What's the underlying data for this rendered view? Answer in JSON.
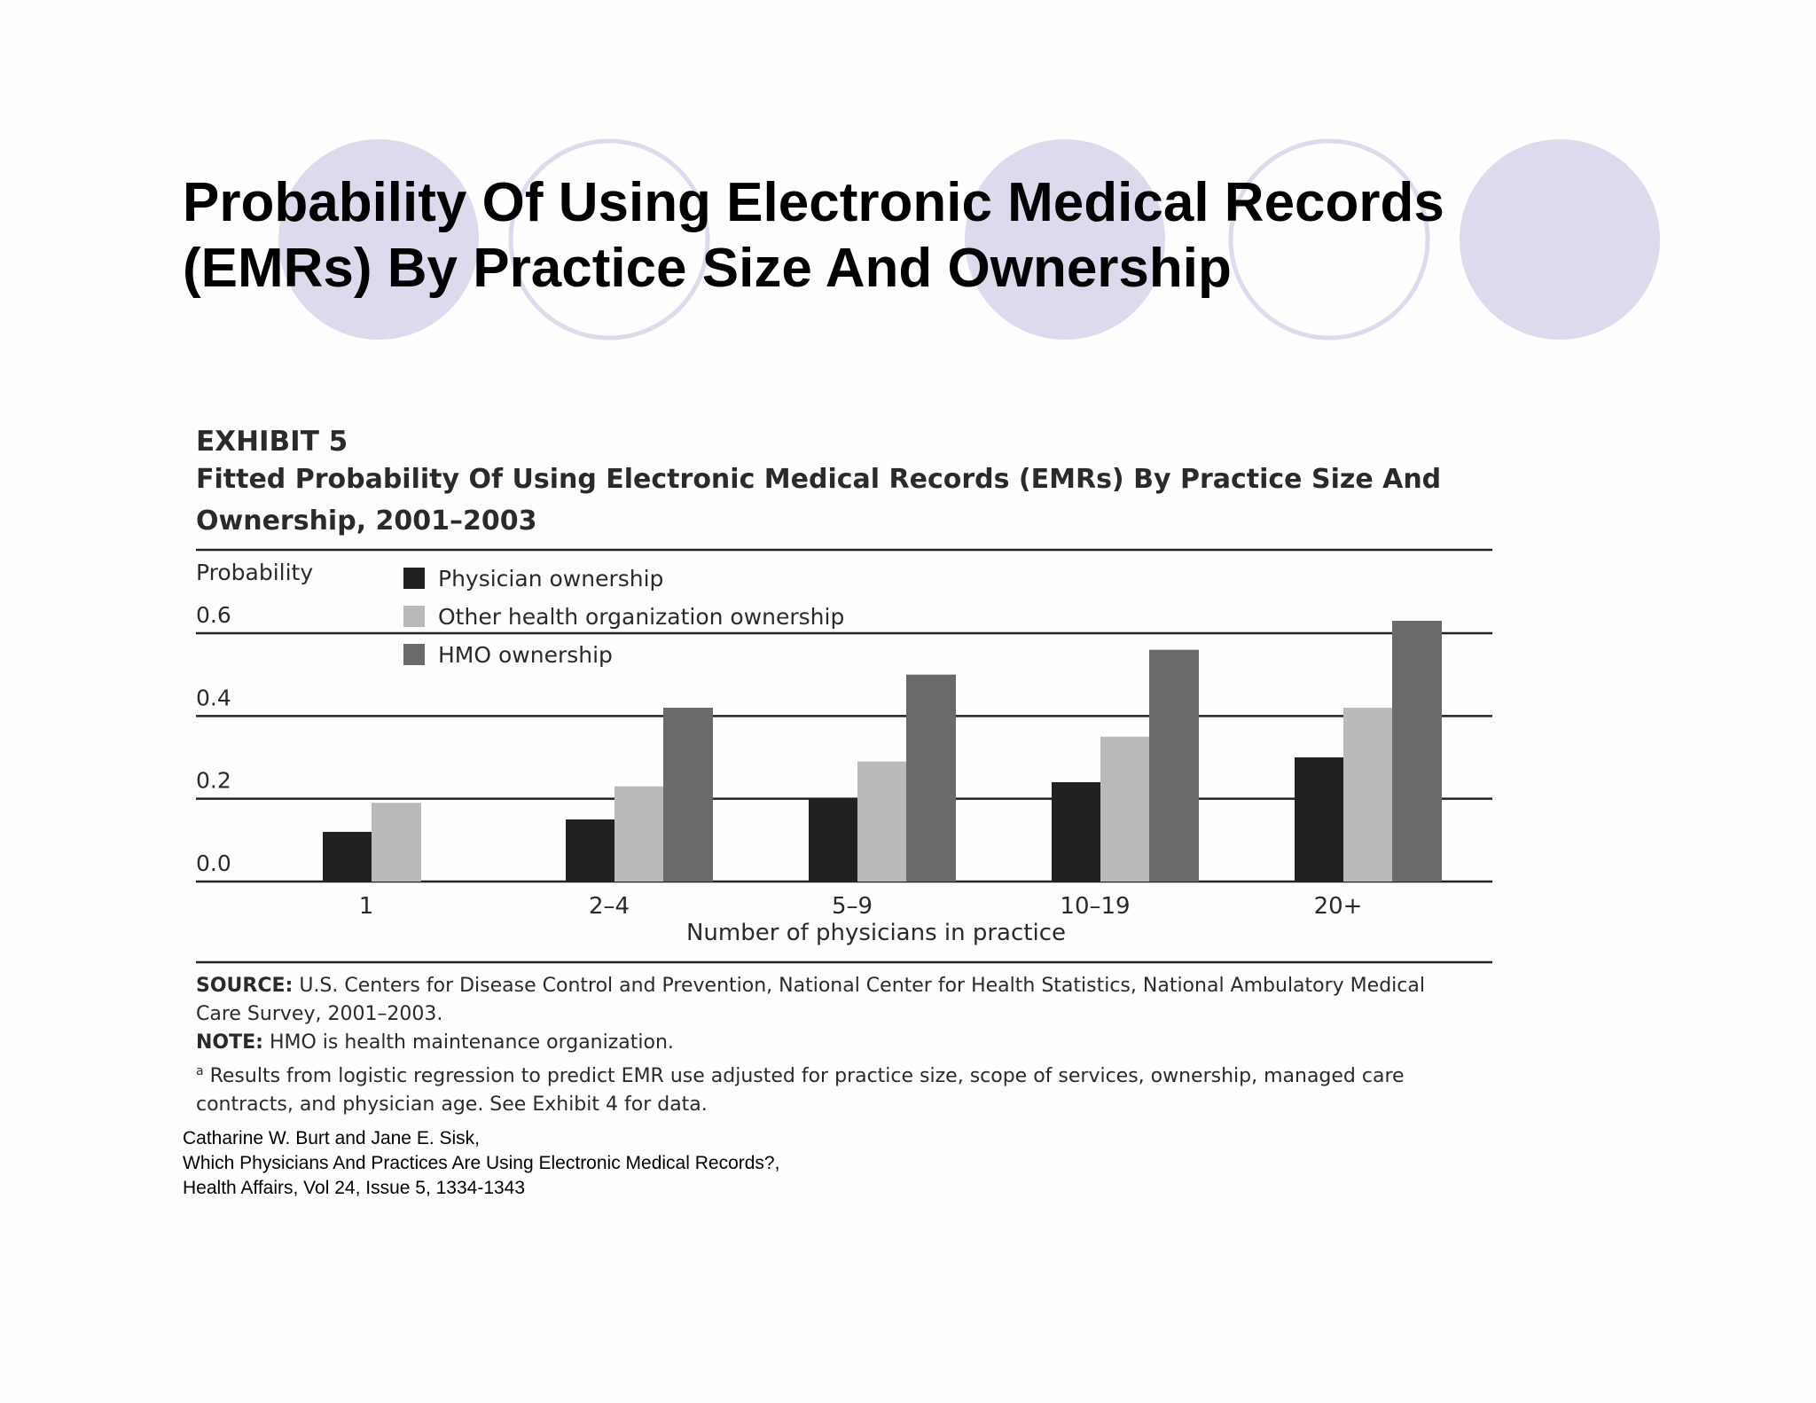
{
  "slide": {
    "title_line1": "Probability Of Using Electronic Medical Records",
    "title_line2": "(EMRs) By Practice Size And Ownership",
    "decor_colors": {
      "filled": "#dcdaec",
      "ring": "#dcdaec"
    }
  },
  "exhibit": {
    "label": "EXHIBIT 5",
    "title_line1": "Fitted Probability Of Using Electronic Medical Records (EMRs) By Practice Size And",
    "title_line2": "Ownership, 2001–2003"
  },
  "chart_data": {
    "type": "bar",
    "title": "Fitted Probability Of Using Electronic Medical Records (EMRs) By Practice Size And Ownership, 2001–2003",
    "xlabel": "Number of physicians in practice",
    "ylabel": "Probability",
    "categories": [
      "1",
      "2–4",
      "5–9",
      "10–19",
      "20+"
    ],
    "series": [
      {
        "name": "Physician ownership",
        "color": "#222022",
        "values": [
          0.12,
          0.15,
          0.2,
          0.24,
          0.3
        ]
      },
      {
        "name": "Other health organization ownership",
        "color": "#bbb9bb",
        "values": [
          0.19,
          0.23,
          0.29,
          0.35,
          0.42
        ]
      },
      {
        "name": "HMO ownership",
        "color": "#6b696b",
        "values": [
          null,
          0.42,
          0.5,
          0.56,
          0.63
        ]
      }
    ],
    "yticks": [
      "0.0",
      "0.2",
      "0.4",
      "0.6"
    ],
    "ylim": [
      0,
      0.6
    ],
    "grid": true,
    "legend": "top-left"
  },
  "notes": {
    "source_label": "SOURCE:",
    "source_text": "U.S. Centers for Disease Control and Prevention, National Center for Health Statistics, National Ambulatory Medical Care Survey, 2001–2003.",
    "note_label": "NOTE:",
    "note_text": "HMO is health maintenance organization.",
    "footnote_mark": "a",
    "footnote_text": "Results from logistic regression to predict EMR use adjusted for practice size, scope of services, ownership, managed care contracts, and physician age. See Exhibit 4 for data."
  },
  "citation": {
    "line1": "Catharine W. Burt and Jane E. Sisk,",
    "line2": "Which Physicians And Practices Are Using Electronic Medical Records?,",
    "line3": "Health Affairs, Vol 24, Issue 5, 1334-1343"
  }
}
